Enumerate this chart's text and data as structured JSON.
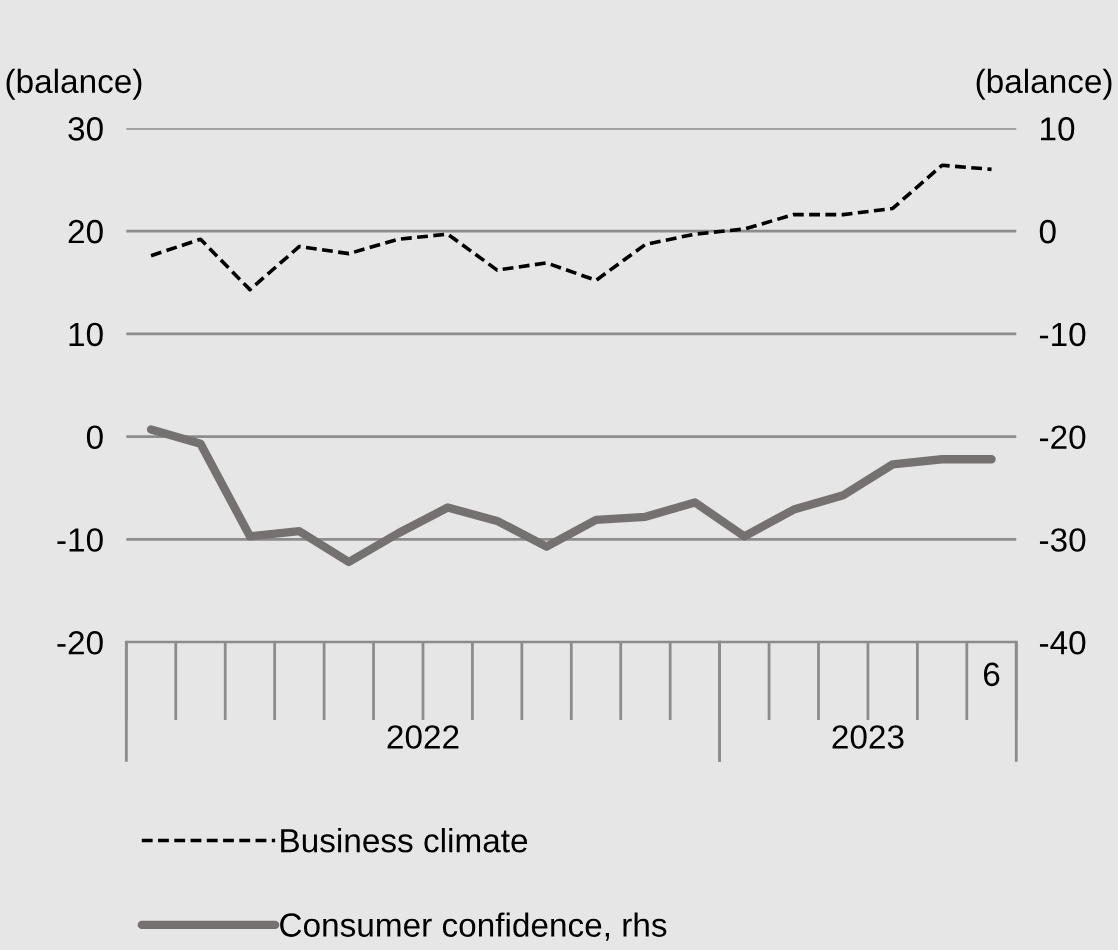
{
  "chart_data": {
    "type": "line",
    "categories": [
      null,
      null,
      null,
      null,
      null,
      null,
      null,
      null,
      null,
      null,
      null,
      null,
      null,
      null,
      null,
      null,
      null,
      "6"
    ],
    "series": [
      {
        "name": "Business climate",
        "color": "#000000",
        "line_style": "dashed",
        "values": [
          17.6,
          19.2,
          14.3,
          18.5,
          17.8,
          19.2,
          19.7,
          16.2,
          16.9,
          15.2,
          18.7,
          19.7,
          20.2,
          21.6,
          21.6,
          22.2,
          26.4,
          26.0
        ]
      },
      {
        "name": "Consumer confidence, rhs",
        "color": "#767171",
        "axis": "y2",
        "line_style": "solid",
        "values": [
          -19.3,
          -20.7,
          -29.7,
          -29.2,
          -32.2,
          -29.4,
          -26.9,
          -28.2,
          -30.7,
          -28.1,
          -27.8,
          -26.4,
          -29.7,
          -27.1,
          -25.7,
          -22.7,
          -22.2,
          -22.2
        ]
      }
    ],
    "ylabel": "(balance)",
    "y2label": "(balance)",
    "ylim": [
      -20,
      30
    ],
    "yticks": [
      -20,
      -10,
      0,
      10,
      20,
      30
    ],
    "y2lim": [
      -40,
      10
    ],
    "y2ticks": [
      -40,
      -30,
      -20,
      -10,
      0,
      10
    ],
    "annotations": [
      "2022",
      "2023"
    ],
    "grid": "y",
    "legend": "bottom",
    "marker": "none"
  }
}
